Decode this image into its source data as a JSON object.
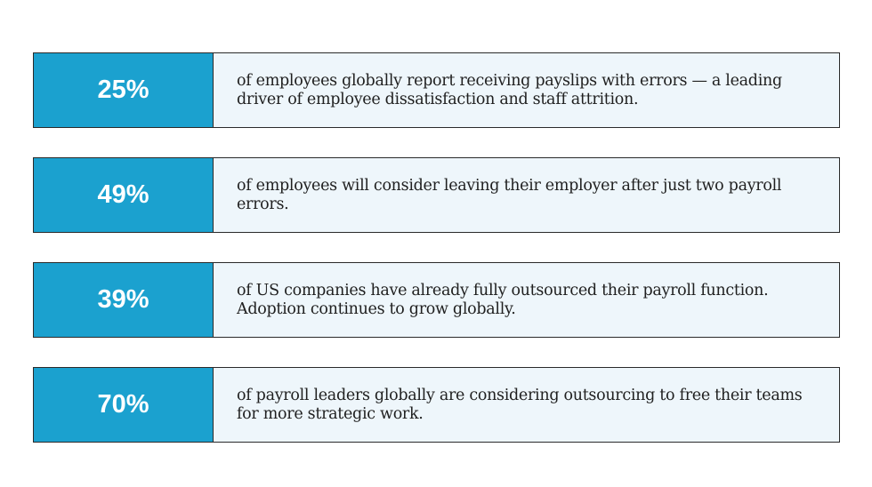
{
  "stats": [
    {
      "value": "25%",
      "text": "of employees globally report receiving payslips with errors — a leading driver of employee dissatisfaction and staff attrition."
    },
    {
      "value": "49%",
      "text": "of employees will consider leaving their employer after just two payroll errors."
    },
    {
      "value": "39%",
      "text": "of US companies have already fully outsourced their payroll function. Adoption continues to grow globally."
    },
    {
      "value": "70%",
      "text": "of payroll leaders globally are considering outsourcing to free their teams for more strategic work."
    }
  ],
  "colors": {
    "accent": "#1ba1cf",
    "panel": "#eef6fb",
    "border": "#2a2a2a"
  }
}
